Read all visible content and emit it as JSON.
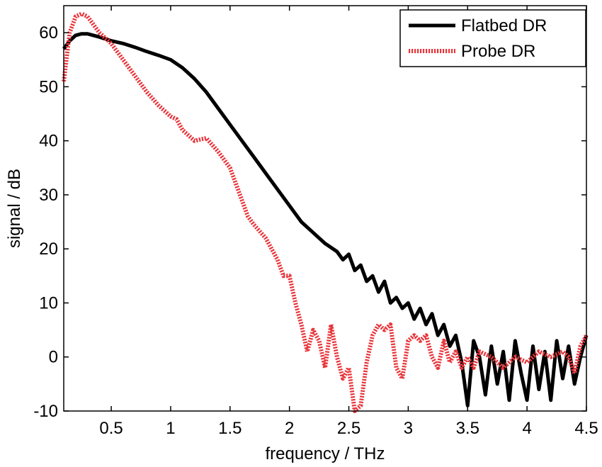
{
  "chart_data": {
    "type": "line",
    "title": "",
    "xlabel": "frequency / THz",
    "ylabel": "signal / dB",
    "xlim": [
      0.1,
      4.5
    ],
    "ylim": [
      -10,
      65
    ],
    "grid": false,
    "legend_position": "top-right",
    "x_ticks": [
      {
        "value": 0.5,
        "label": "0.5"
      },
      {
        "value": 1,
        "label": "1"
      },
      {
        "value": 1.5,
        "label": "1.5"
      },
      {
        "value": 2,
        "label": "2"
      },
      {
        "value": 2.5,
        "label": "2.5"
      },
      {
        "value": 3,
        "label": "3"
      },
      {
        "value": 3.5,
        "label": "3.5"
      },
      {
        "value": 4,
        "label": "4"
      },
      {
        "value": 4.5,
        "label": "4.5"
      }
    ],
    "y_ticks": [
      {
        "value": -10,
        "label": "-10"
      },
      {
        "value": 0,
        "label": "0"
      },
      {
        "value": 10,
        "label": "10"
      },
      {
        "value": 20,
        "label": "20"
      },
      {
        "value": 30,
        "label": "30"
      },
      {
        "value": 40,
        "label": "40"
      },
      {
        "value": 50,
        "label": "50"
      },
      {
        "value": 60,
        "label": "60"
      }
    ],
    "series": [
      {
        "name": "Flatbed DR",
        "color": "#000000",
        "style": "solid",
        "x": [
          0.1,
          0.15,
          0.2,
          0.25,
          0.3,
          0.4,
          0.5,
          0.6,
          0.7,
          0.8,
          0.9,
          1.0,
          1.1,
          1.2,
          1.3,
          1.4,
          1.5,
          1.6,
          1.7,
          1.8,
          1.9,
          2.0,
          2.1,
          2.2,
          2.3,
          2.4,
          2.45,
          2.5,
          2.55,
          2.6,
          2.65,
          2.7,
          2.75,
          2.8,
          2.85,
          2.9,
          2.95,
          3.0,
          3.05,
          3.1,
          3.15,
          3.2,
          3.25,
          3.3,
          3.35,
          3.4,
          3.45,
          3.5,
          3.55,
          3.6,
          3.65,
          3.7,
          3.75,
          3.8,
          3.85,
          3.9,
          3.95,
          4.0,
          4.05,
          4.1,
          4.15,
          4.2,
          4.25,
          4.3,
          4.35,
          4.4,
          4.45,
          4.5
        ],
        "y": [
          57,
          58.5,
          59.5,
          59.8,
          59.8,
          59.2,
          58.5,
          58,
          57.3,
          56.5,
          55.8,
          55,
          53.5,
          51.5,
          49,
          46,
          43,
          40,
          37,
          34,
          31,
          28,
          25,
          23,
          21,
          19.5,
          18,
          19,
          16,
          17,
          14,
          15,
          12,
          14,
          10,
          11,
          9,
          10,
          7,
          9,
          6,
          8,
          4,
          6,
          2,
          4,
          -1,
          -9,
          3,
          0,
          -7,
          2,
          -5,
          1,
          -8,
          3,
          -3,
          -8,
          2,
          -6,
          1,
          -8,
          3,
          -4,
          2,
          -5,
          0,
          4
        ]
      },
      {
        "name": "Probe DR",
        "color": "#e8343a",
        "style": "dotted",
        "x": [
          0.1,
          0.15,
          0.2,
          0.25,
          0.3,
          0.35,
          0.4,
          0.5,
          0.6,
          0.7,
          0.8,
          0.9,
          1.0,
          1.05,
          1.1,
          1.15,
          1.2,
          1.3,
          1.4,
          1.5,
          1.6,
          1.65,
          1.7,
          1.8,
          1.9,
          1.95,
          2.0,
          2.05,
          2.1,
          2.15,
          2.2,
          2.25,
          2.3,
          2.35,
          2.4,
          2.45,
          2.5,
          2.55,
          2.6,
          2.65,
          2.7,
          2.75,
          2.8,
          2.85,
          2.9,
          2.95,
          3.0,
          3.05,
          3.1,
          3.15,
          3.2,
          3.25,
          3.3,
          3.35,
          3.4,
          3.45,
          3.5,
          3.55,
          3.6,
          3.7,
          3.8,
          3.9,
          4.0,
          4.1,
          4.2,
          4.3,
          4.35,
          4.4,
          4.45,
          4.5
        ],
        "y": [
          51,
          60,
          63,
          63.5,
          63,
          61.5,
          60,
          58,
          55,
          52,
          49,
          46.5,
          44.5,
          44,
          42,
          41,
          40,
          40.5,
          38,
          35,
          29,
          26,
          24.5,
          22,
          18,
          15,
          15,
          10,
          6,
          1,
          5,
          3,
          -2,
          6,
          0,
          -4,
          -2,
          -10,
          -9,
          -1,
          4,
          6,
          5,
          6,
          -2,
          -4,
          3,
          4,
          3,
          4,
          0,
          -2,
          3,
          -1,
          1,
          -2,
          0,
          -2,
          1,
          0,
          -2,
          0,
          -1,
          1,
          0,
          1,
          0,
          -3,
          2,
          4
        ]
      }
    ]
  }
}
